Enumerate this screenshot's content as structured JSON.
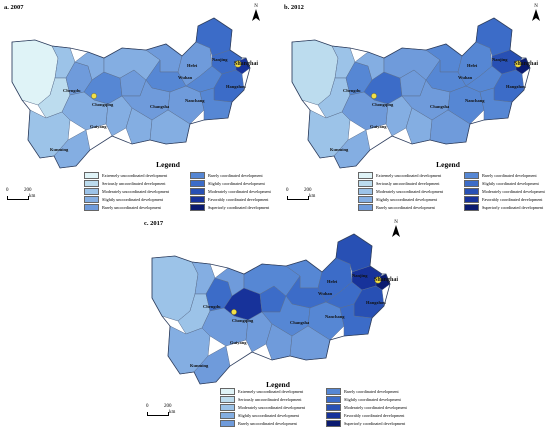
{
  "panels": [
    {
      "label": "a. 2007"
    },
    {
      "label": "b. 2012"
    },
    {
      "label": "c. 2017"
    }
  ],
  "north_symbol": "N",
  "legend": {
    "title": "Legend",
    "items": [
      {
        "label": "Extremely uncoordinated development",
        "color": "#dff3f7"
      },
      {
        "label": "Seriously uncoordinated development",
        "color": "#bcdcee"
      },
      {
        "label": "Moderately uncoordinated development",
        "color": "#9cc3e8"
      },
      {
        "label": "Slightly uncoordinated development",
        "color": "#84aee2"
      },
      {
        "label": "Barely uncoordinated development",
        "color": "#6f9bdb"
      },
      {
        "label": "Barely coordinated development",
        "color": "#5687d4"
      },
      {
        "label": "Slightly coordinated development",
        "color": "#3c6cc8"
      },
      {
        "label": "Moderately coordinated development",
        "color": "#2850b4"
      },
      {
        "label": "Favorably coordinated development",
        "color": "#17329a"
      },
      {
        "label": "Superiorly coordinated development",
        "color": "#0a1a70"
      }
    ]
  },
  "scale_bar": {
    "start": "0",
    "end": "200",
    "unit": "km"
  },
  "cities": {
    "shanghai": "Shanghai",
    "chengdu": "Chengdu",
    "chongqing": "Chongqing",
    "wuhan": "Wuhan",
    "changsha": "Changsha",
    "hefei": "Hefei",
    "nanjing": "Nanjing",
    "hangzhou": "Hangzhou",
    "nanchang": "Nanchang",
    "guiyang": "Guiyang",
    "kunming": "Kunming"
  }
}
